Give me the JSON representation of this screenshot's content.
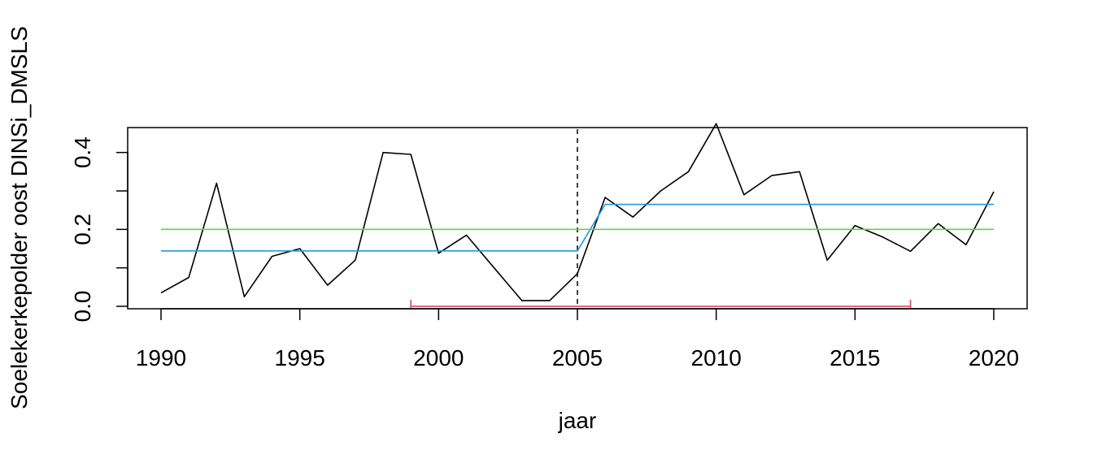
{
  "chart_data": {
    "type": "line",
    "title": "",
    "xlabel": "jaar",
    "ylabel": "Soelekerkepolder oost DINSi_DMSLS",
    "xlim": [
      1990,
      2020
    ],
    "ylim": [
      0,
      0.45
    ],
    "x_ticks": [
      1990,
      1995,
      2000,
      2005,
      2010,
      2015,
      2020
    ],
    "y_ticks": [
      0.0,
      0.1,
      0.2,
      0.3,
      0.4
    ],
    "y_tick_labels": [
      "0.0",
      "",
      "0.2",
      "",
      "0.4"
    ],
    "grid": false,
    "legend": "none",
    "series": [
      {
        "color": "#000000",
        "x": [
          1990,
          1991,
          1992,
          1993,
          1994,
          1995,
          1996,
          1997,
          1998,
          1999,
          2000,
          2001,
          2002,
          2003,
          2004,
          2005,
          2006,
          2007,
          2008,
          2009,
          2010,
          2011,
          2012,
          2013,
          2014,
          2015,
          2016,
          2017,
          2018,
          2019,
          2020
        ],
        "y": [
          0.035,
          0.075,
          0.32,
          0.025,
          0.13,
          0.15,
          0.055,
          0.12,
          0.4,
          0.395,
          0.138,
          0.185,
          0.1,
          0.015,
          0.015,
          0.085,
          0.283,
          0.232,
          0.3,
          0.35,
          0.475,
          0.29,
          0.34,
          0.35,
          0.12,
          0.21,
          0.18,
          0.143,
          0.215,
          0.16,
          0.298
        ]
      },
      {
        "color": "#2297E6",
        "x": [
          1990,
          2005,
          2006,
          2020
        ],
        "y": [
          0.144,
          0.144,
          0.265,
          0.265
        ]
      },
      {
        "color": "#61D04F",
        "x": [
          1990,
          2020
        ],
        "y": [
          0.2,
          0.2
        ]
      }
    ],
    "annotations": [
      {
        "type": "vline",
        "x": 2005,
        "style": "dashed",
        "color": "#000000"
      },
      {
        "type": "interval",
        "x_start": 1999,
        "x_end": 2017,
        "y": 0.0,
        "color": "#DF536B"
      }
    ]
  }
}
